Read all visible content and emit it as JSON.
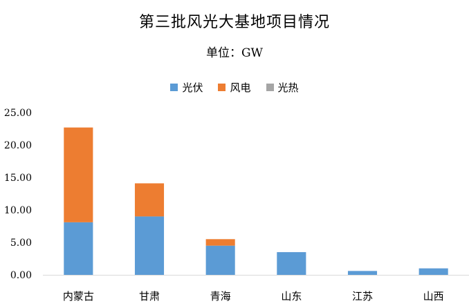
{
  "chart_data": {
    "type": "bar",
    "stacked": true,
    "title": "第三批风光大基地项目情况",
    "subtitle": "单位：GW",
    "categories": [
      "内蒙古",
      "甘肃",
      "青海",
      "山东",
      "江苏",
      "山西"
    ],
    "series": [
      {
        "name": "光伏",
        "color": "#5B9BD5",
        "values": [
          8.1,
          9.0,
          4.5,
          3.5,
          0.6,
          1.0
        ]
      },
      {
        "name": "风电",
        "color": "#ED7D31",
        "values": [
          14.6,
          5.1,
          1.0,
          0,
          0,
          0
        ]
      },
      {
        "name": "光热",
        "color": "#A5A5A5",
        "values": [
          0,
          0,
          0,
          0,
          0,
          0
        ]
      }
    ],
    "ylim": [
      0,
      25
    ],
    "yticks": [
      "0.00",
      "5.00",
      "10.00",
      "15.00",
      "20.00",
      "25.00"
    ],
    "legend_position": "top-center",
    "grid": false
  }
}
